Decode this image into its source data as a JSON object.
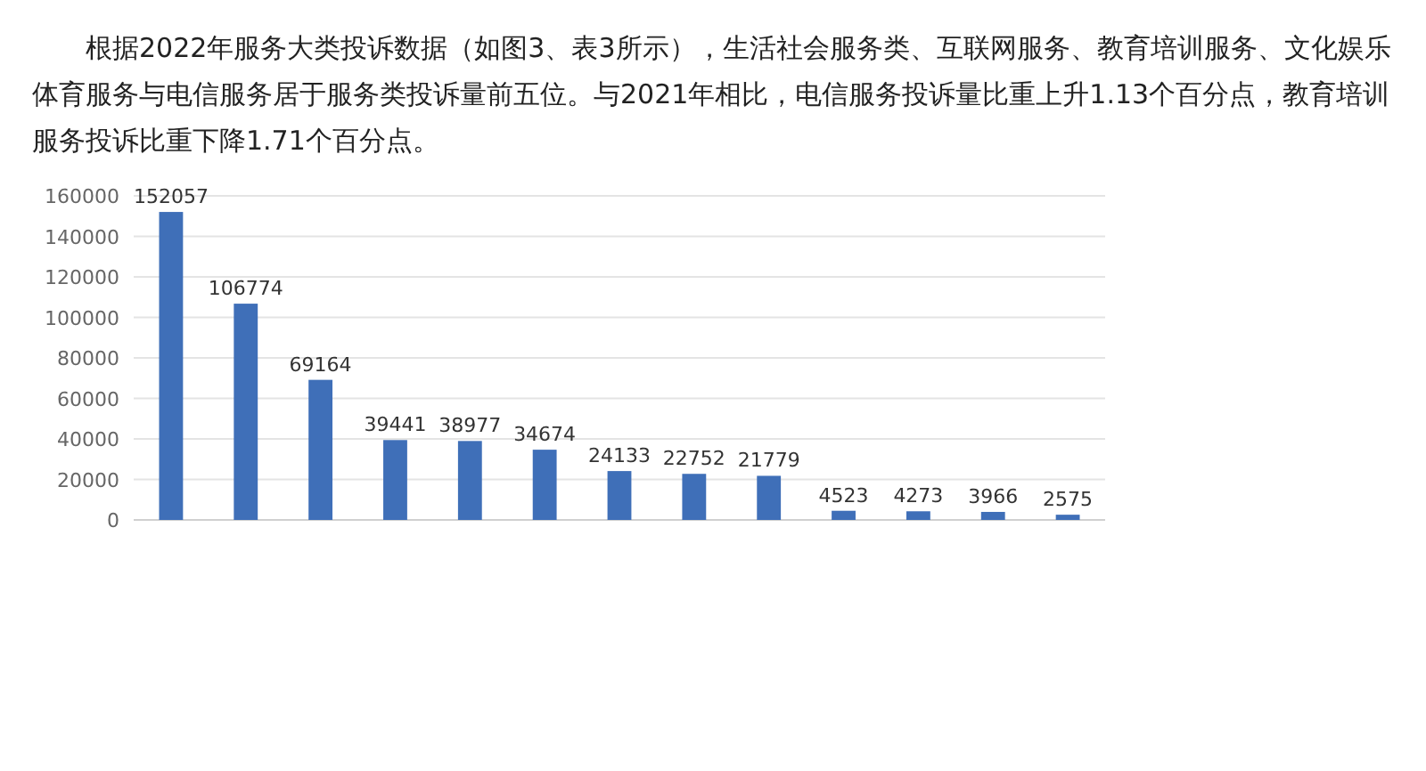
{
  "chart_data": {
    "type": "bar",
    "title": "根据2022年服务大类投诉数据（如图3、表3所示），生活社会服务类、互联网服务、教育培训服务、文化娱乐体育服务与电信服务居于服务类投诉量前五位。与2021年相比，电信服务投诉量比重上升1.13个百分点，教育培训服务投诉比重下降1.71个百分点。",
    "categories": [
      null,
      null,
      null,
      null,
      null,
      null,
      null,
      null,
      null,
      null,
      null,
      null,
      null
    ],
    "values": [
      152057,
      106774,
      69164,
      39441,
      38977,
      34674,
      24133,
      22752,
      21779,
      4523,
      4273,
      3966,
      2575
    ],
    "color": "#3f6fb8",
    "data_labels": true,
    "ylim": [
      0,
      160000
    ],
    "yticks": [
      0,
      20000,
      40000,
      60000,
      80000,
      100000,
      120000,
      140000,
      160000
    ],
    "grid": "y"
  }
}
